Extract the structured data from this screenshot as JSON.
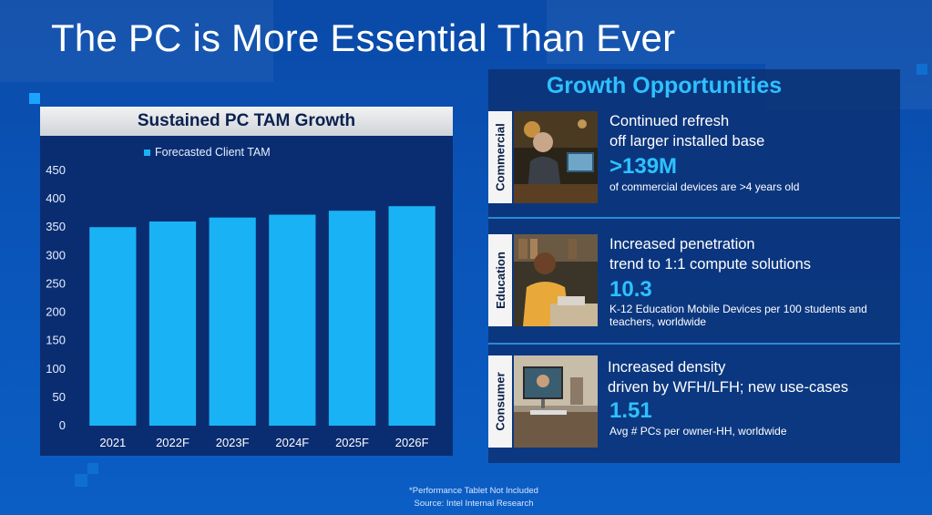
{
  "slide": {
    "title": "The PC is More Essential Than Ever"
  },
  "chart_data": {
    "type": "bar",
    "title": "Sustained PC TAM Growth",
    "categories": [
      "2021",
      "2022F",
      "2023F",
      "2024F",
      "2025F",
      "2026F"
    ],
    "series": [
      {
        "name": "Forecasted Client TAM",
        "values": [
          350,
          360,
          367,
          372,
          379,
          387
        ]
      }
    ],
    "ylim": [
      0,
      450
    ],
    "yticks": [
      0,
      50,
      100,
      150,
      200,
      250,
      300,
      350,
      400,
      450
    ],
    "grid": false,
    "legend": "top",
    "bar_color": "#19b3f5"
  },
  "opportunities": {
    "title": "Growth Opportunities",
    "items": [
      {
        "label": "Commercial",
        "lead": [
          "Continued refresh",
          "off larger installed base"
        ],
        "stat": ">139M",
        "detail": [
          "of commercial devices are >4 years old"
        ]
      },
      {
        "label": "Education",
        "lead": [
          "Increased penetration",
          "trend to 1:1 compute solutions"
        ],
        "stat": "10.3",
        "detail": [
          "K-12 Education Mobile Devices per 100 students and",
          "teachers, worldwide"
        ]
      },
      {
        "label": "Consumer",
        "lead": [
          "Increased density",
          "driven by WFH/LFH; new use-cases"
        ],
        "stat": "1.51",
        "detail": [
          "Avg # PCs per owner-HH, worldwide"
        ]
      }
    ]
  },
  "footnotes": {
    "line1": "*Performance Tablet Not Included",
    "line2": "Source: Intel Internal Research"
  },
  "colors": {
    "accent": "#2ec1ff",
    "bar": "#19b3f5",
    "panel": "#0a2d72"
  }
}
